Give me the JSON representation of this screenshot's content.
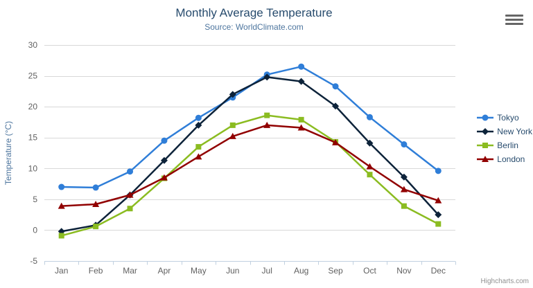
{
  "chart_data": {
    "type": "line",
    "title": "Monthly Average Temperature",
    "subtitle": "Source: WorldClimate.com",
    "xlabel": "",
    "ylabel": "Temperature (°C)",
    "categories": [
      "Jan",
      "Feb",
      "Mar",
      "Apr",
      "May",
      "Jun",
      "Jul",
      "Aug",
      "Sep",
      "Oct",
      "Nov",
      "Dec"
    ],
    "ylim": [
      -5,
      30
    ],
    "ytick_interval": 5,
    "yticks": [
      -5,
      0,
      5,
      10,
      15,
      20,
      25,
      30
    ],
    "grid": true,
    "legend_position": "right",
    "series": [
      {
        "name": "Tokyo",
        "color": "#2f7ed8",
        "marker": "circle",
        "values": [
          7.0,
          6.9,
          9.5,
          14.5,
          18.2,
          21.5,
          25.2,
          26.5,
          23.3,
          18.3,
          13.9,
          9.6
        ]
      },
      {
        "name": "New York",
        "color": "#0d233a",
        "marker": "diamond",
        "values": [
          -0.2,
          0.8,
          5.7,
          11.3,
          17.0,
          22.0,
          24.8,
          24.1,
          20.1,
          14.1,
          8.6,
          2.5
        ]
      },
      {
        "name": "Berlin",
        "color": "#8bbc21",
        "marker": "square",
        "values": [
          -0.9,
          0.6,
          3.5,
          8.4,
          13.5,
          17.0,
          18.6,
          17.9,
          14.3,
          9.0,
          3.9,
          1.0
        ]
      },
      {
        "name": "London",
        "color": "#910000",
        "marker": "triangle",
        "values": [
          3.9,
          4.2,
          5.7,
          8.5,
          11.9,
          15.2,
          17.0,
          16.6,
          14.2,
          10.3,
          6.6,
          4.8
        ]
      }
    ],
    "axis": {
      "grid_color": "#d8d8d8",
      "line_color": "#c0d0e0",
      "tick_color": "#c0d0e0",
      "label_color": "#606060",
      "title_color": "#4d759e"
    },
    "legend": {
      "item_color": "#274b6d"
    },
    "credits": "Highcharts.com"
  },
  "header": {
    "title_color": "#274b6d",
    "subtitle_color": "#4d759e"
  }
}
